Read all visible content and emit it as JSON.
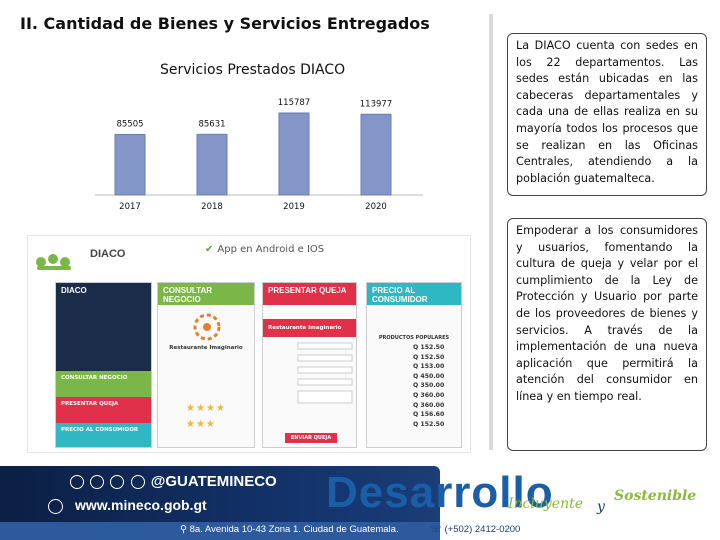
{
  "slide": {
    "title": "II. Cantidad de Bienes y Servicios Entregados"
  },
  "chart_data": {
    "type": "bar",
    "title": "Servicios Prestados DIACO",
    "categories": [
      "2017",
      "2018",
      "2019",
      "2020"
    ],
    "values": [
      85505,
      85631,
      115787,
      113977
    ],
    "labels": [
      "85505",
      "85631",
      "115787",
      "113977"
    ],
    "ylim": [
      0,
      120000
    ],
    "grid": false,
    "legend": "none",
    "colors": {
      "bar": "#8496c8",
      "bar_edge": "#6a7db5"
    }
  },
  "textbox1": {
    "text": "La DIACO cuenta con sedes en los 22 departamentos. Las sedes están ubicadas en las cabeceras departamentales y cada una de ellas realiza en su mayoría todos los procesos que se realizan en las Oficinas Centrales, atendiendo a la población guatemalteca."
  },
  "textbox2": {
    "text": "Empoderar a los consumidores y usuarios, fomentando la cultura de queja y velar por el cumplimiento de la Ley de Protección y Usuario por parte de los proveedores de bienes y servicios. A través de la implementación de una nueva aplicación que permitirá la atención del consumidor en línea y en tiempo real."
  },
  "app_image": {
    "logo_text": "DIACO",
    "android_ios": "App en Android e IOS",
    "screens": [
      {
        "header": "DIACO",
        "color": "#1a2c48"
      },
      {
        "header": "CONSULTAR NEGOCIO",
        "color": "#7ab648"
      },
      {
        "header": "PRESENTAR QUEJA",
        "color": "#e0304a"
      },
      {
        "header": "PRECIO AL CONSUMIDOR",
        "color": "#2eb8c4"
      }
    ],
    "menu_items": [
      {
        "label": "CONSULTAR NEGOCIO",
        "color": "#7ab648"
      },
      {
        "label": "PRESENTAR QUEJA",
        "color": "#e0304a"
      },
      {
        "label": "PRECIO AL CONSUMIDOR",
        "color": "#2eb8c4"
      }
    ],
    "business_name": "Restaurante Imaginario",
    "submit_label": "ENVIAR QUEJA",
    "products_title": "PRODUCTOS POPULARES",
    "prices": [
      "Q 152.50",
      "Q 152.50",
      "Q 153.00",
      "Q 450.00",
      "Q 350.00",
      "Q 360.00",
      "Q 360.00",
      "Q 156.60",
      "Q 152.50"
    ]
  },
  "footer": {
    "social_handle": "@GUATEMINECO",
    "website": "www.mineco.gob.gt",
    "address": "8a. Avenida 10-43 Zona 1. Ciudad de Guatemala.",
    "phone": "(+502) 2412-0200",
    "brand_main": "Desarrollo",
    "brand_incluyente": "Incluyente",
    "brand_y": "y",
    "brand_sostenible": "Sostenible"
  }
}
